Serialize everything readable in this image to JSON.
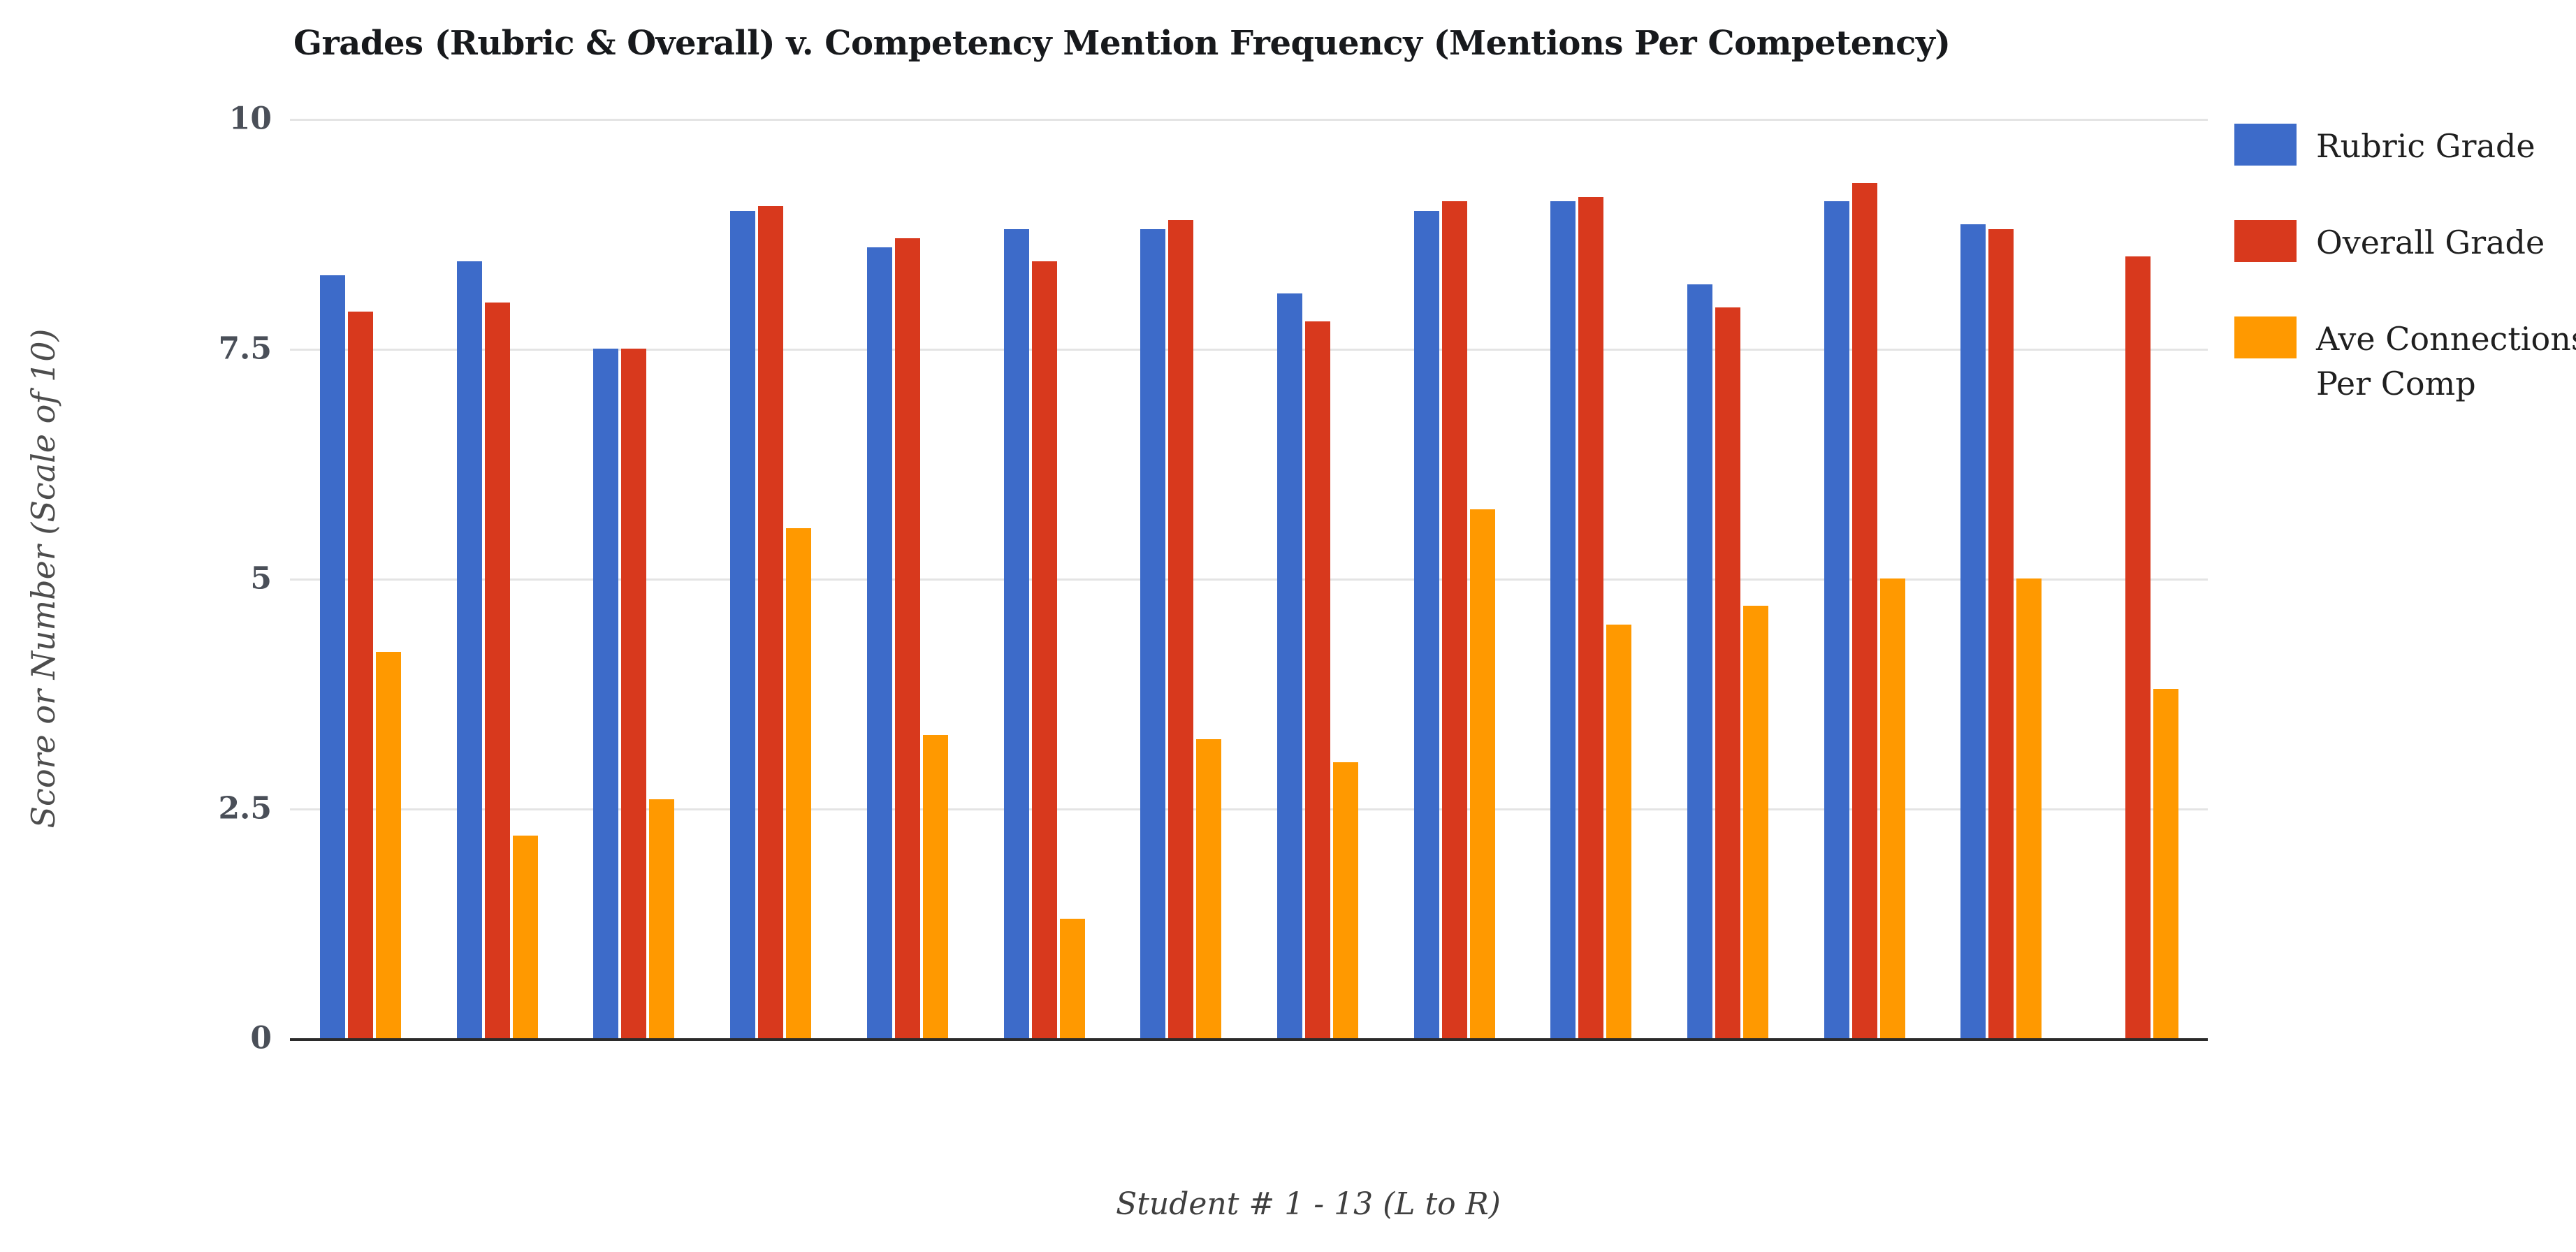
{
  "title": "Grades (Rubric & Overall) v. Competency Mention Frequency (Mentions Per Competency)",
  "y_axis": {
    "title": "Score or Number (Scale of 10)",
    "tick_labels": [
      "10",
      "7.5",
      "5",
      "2.5",
      "0"
    ]
  },
  "x_axis": {
    "title": "Student # 1 - 13 (L to R)",
    "tick_labels": []
  },
  "chart_data": {
    "type": "bar",
    "title": "Grades (Rubric & Overall) v. Competency Mention Frequency (Mentions Per Competency)",
    "xlabel": "Student # 1 - 13 (L to R)",
    "ylabel": "Score or Number (Scale of 10)",
    "ylim": [
      0,
      10
    ],
    "yticks": [
      0,
      2.5,
      5,
      7.5,
      10
    ],
    "x_tick_labels": [],
    "n_groups": 14,
    "grid": true,
    "legend_position": "right",
    "background": "#ffffff",
    "gridline_color": "#e4e4e4",
    "baseline_color": "#2b2b2b",
    "series": [
      {
        "name": "Rubric Grade",
        "color": "#3D6BC9",
        "values": [
          8.3,
          8.45,
          7.5,
          9.0,
          8.6,
          8.8,
          8.8,
          8.1,
          9.0,
          9.1,
          8.2,
          9.1,
          8.85,
          null
        ]
      },
      {
        "name": "Overall Grade",
        "color": "#D8391D",
        "values": [
          7.9,
          8.0,
          7.5,
          9.05,
          8.7,
          8.45,
          8.9,
          7.8,
          9.1,
          9.15,
          7.95,
          9.3,
          8.8,
          8.5
        ]
      },
      {
        "name": "Ave Connections Per Comp",
        "color": "#FF9900",
        "values": [
          4.2,
          2.2,
          2.6,
          5.55,
          3.3,
          1.3,
          3.25,
          3.0,
          5.75,
          4.5,
          4.7,
          5.0,
          5.0,
          3.8
        ]
      }
    ]
  }
}
